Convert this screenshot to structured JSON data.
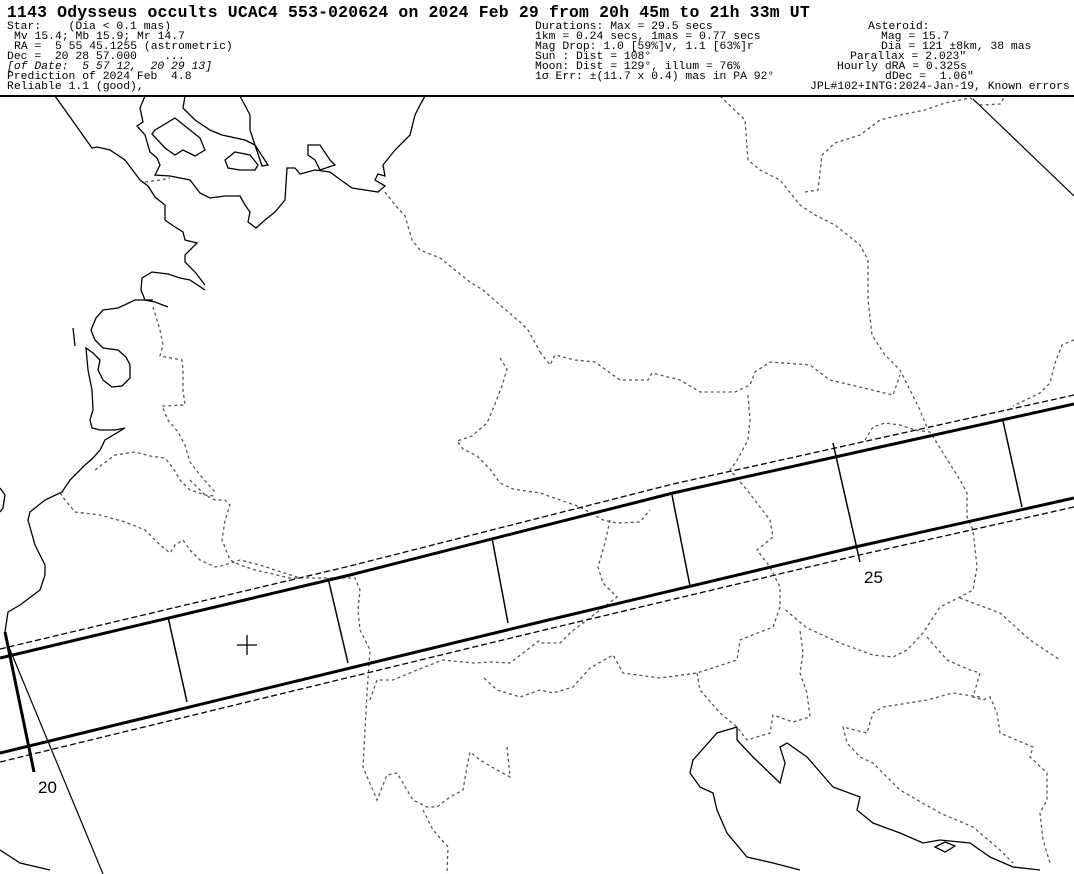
{
  "header": {
    "title": "1143 Odysseus occults UCAC4 553-020624 on 2024 Feb 29 from 20h 45m to 21h 33m UT",
    "star": [
      "Star:    (Dia < 0.1 mas)",
      "Mv 15.4; Mb 15.9; Mr 14.7",
      "RA =  5 55 45.1255 (astrometric)",
      "Dec =  20 28 57.000    ...",
      "[of Date:  5 57 12,  20 29 13]",
      "Prediction of 2024 Feb  4.8",
      "Reliable 1.1 (good),"
    ],
    "event": [
      "Durations: Max = 29.5 secs",
      "1km = 0.24 secs, 1mas = 0.77 secs",
      "Mag Drop: 1.0 [59%]v, 1.1 [63%]r",
      "Sun : Dist = 108°",
      "Moon: Dist = 129°, illum = 76%",
      "1σ Err: ±(11.7 x 0.4) mas in PA 92°"
    ],
    "asteroid": [
      "Asteroid:",
      "Mag = 15.7",
      "Dia = 121 ±8km, 38 mas",
      "Parallax = 2.023\"",
      "Hourly dRA = 0.325s",
      "dDec =  1.06\"",
      "JPL#102+INTG:2024-Jan-19, Known errors"
    ]
  },
  "map": {
    "time_labels": [
      "20",
      "25"
    ],
    "line_color": "#000000",
    "border_color": "#555555"
  }
}
